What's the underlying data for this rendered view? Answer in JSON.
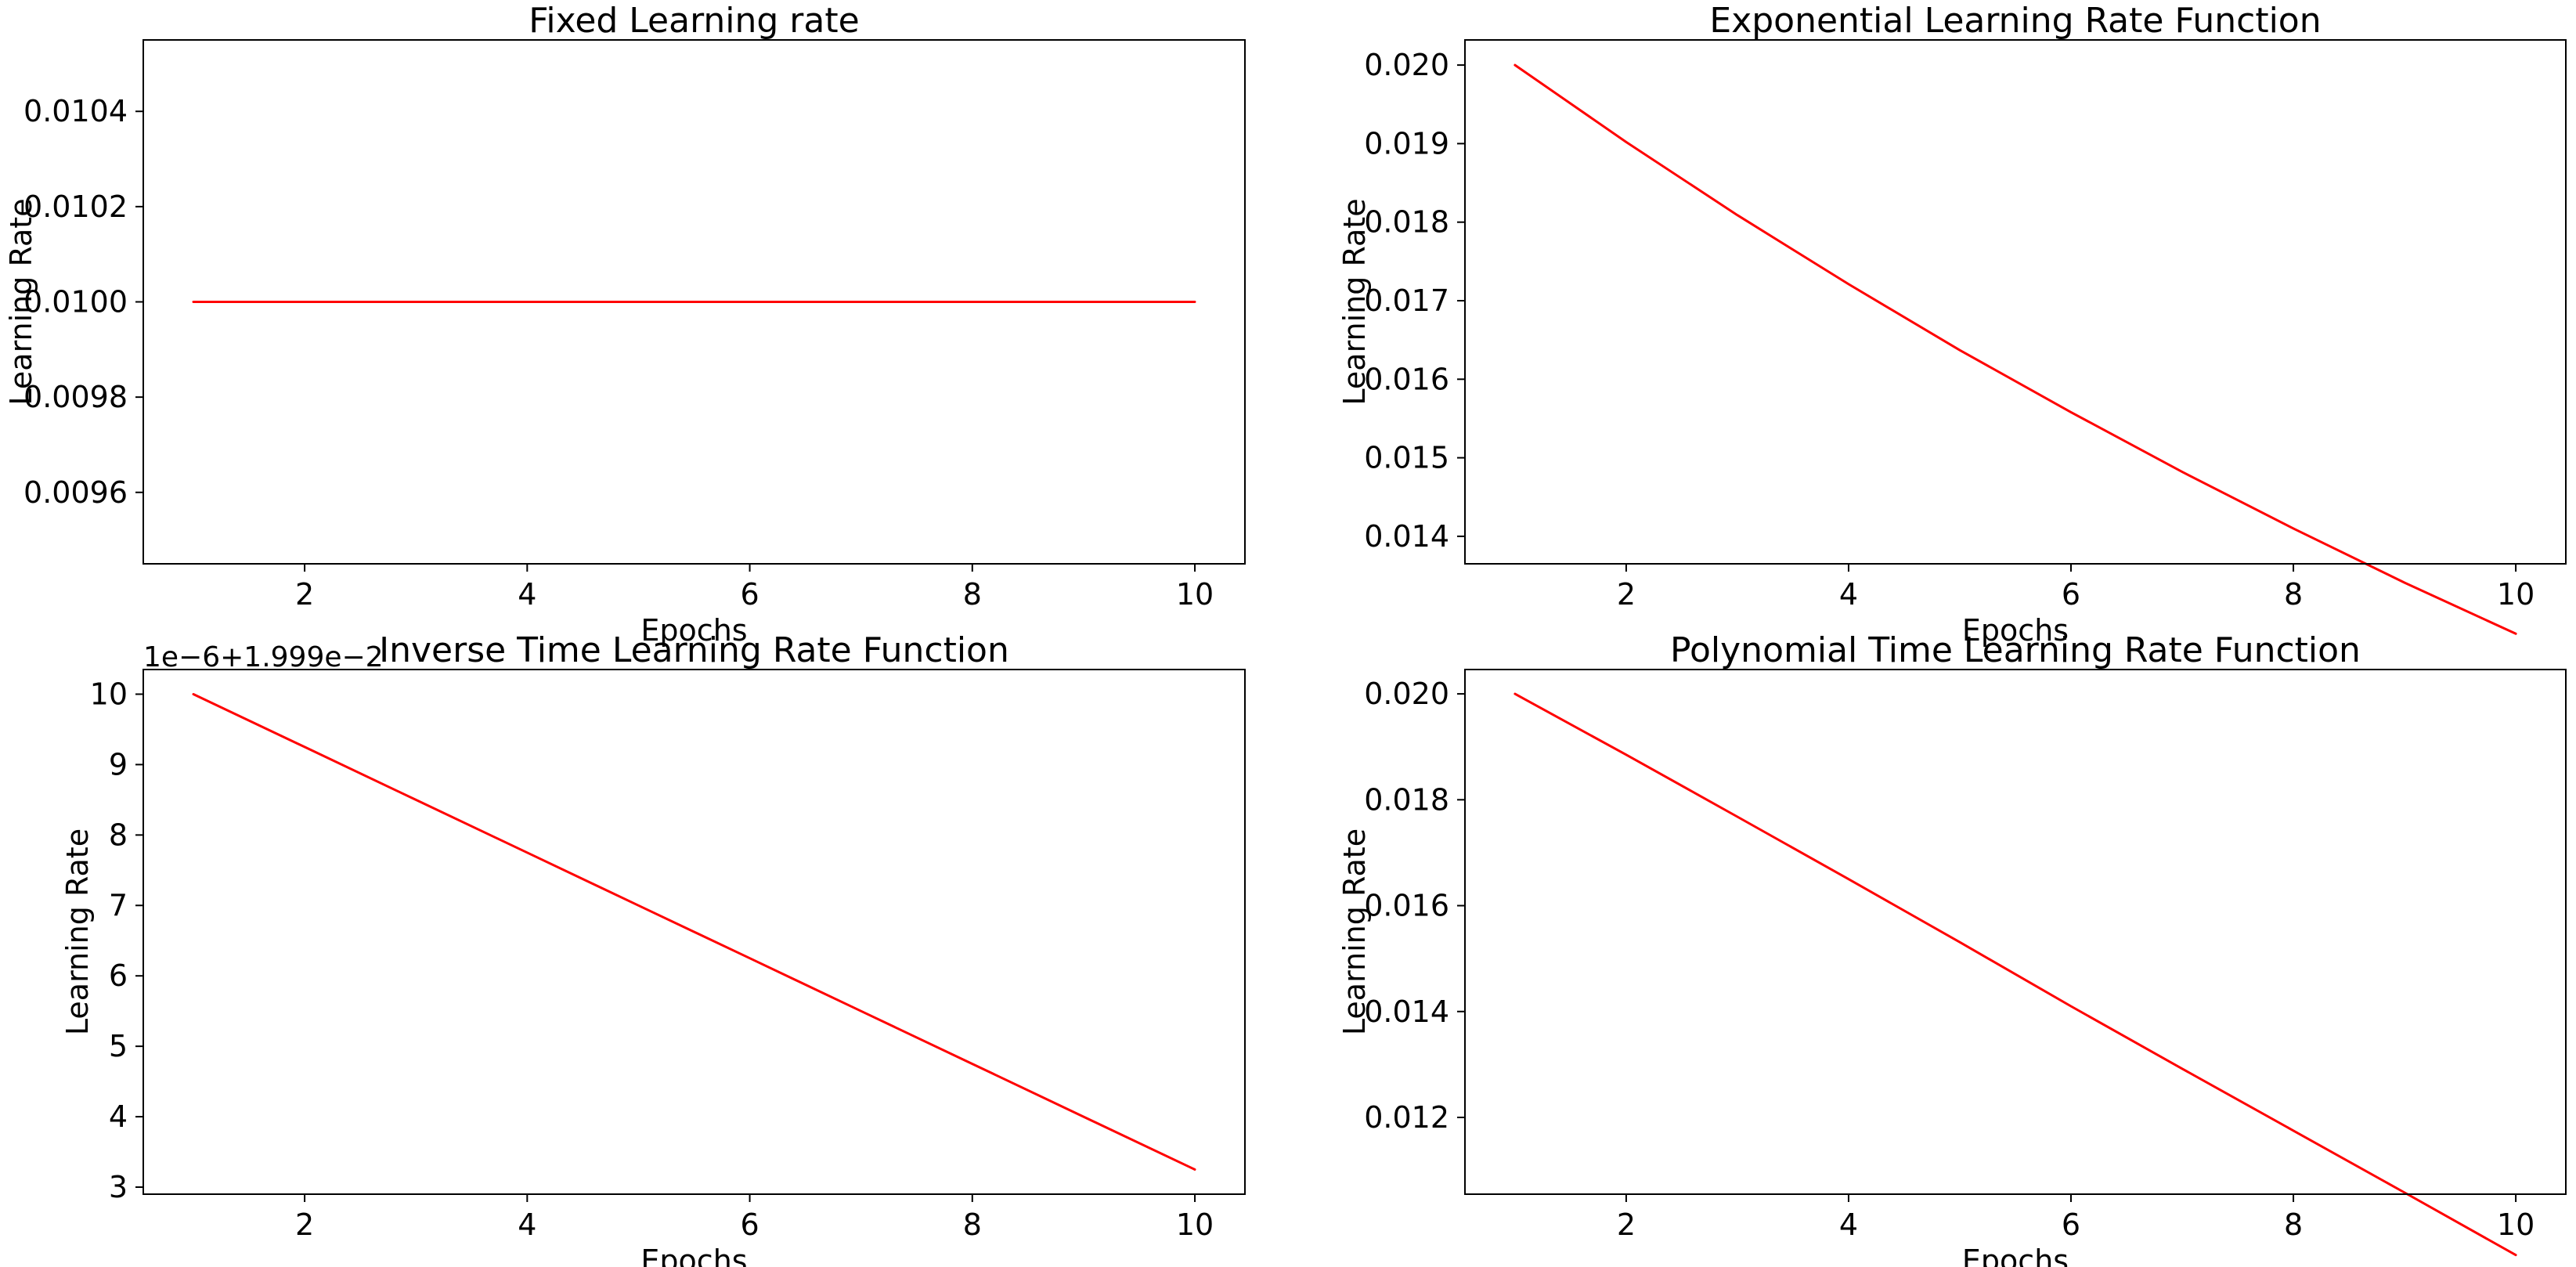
{
  "chart_data": [
    {
      "type": "line",
      "title": "Fixed Learning rate",
      "xlabel": "",
      "ylabel": "Learning Rate",
      "x": [
        1,
        2,
        3,
        4,
        5,
        6,
        7,
        8,
        9,
        10
      ],
      "series": [
        {
          "values": [
            0.01,
            0.01,
            0.01,
            0.01,
            0.01,
            0.01,
            0.01,
            0.01,
            0.01,
            0.01
          ]
        }
      ],
      "xticks": [
        2,
        4,
        6,
        8,
        10
      ],
      "xticklabels": [
        "2",
        "4",
        "6",
        "8",
        "10"
      ],
      "yticks": [
        0.0096,
        0.0098,
        0.01,
        0.0102,
        0.0104
      ],
      "yticklabels": [
        "0.0096",
        "0.0098",
        "0.0100",
        "0.0102",
        "0.0104"
      ],
      "xlim": [
        0.55,
        10.45
      ],
      "ylim": [
        0.00945,
        0.01055
      ],
      "offset_text": "",
      "color": "#ff0000",
      "grid": false
    },
    {
      "type": "line",
      "title": "Exponential Learning Rate Function",
      "xlabel": "Epochs",
      "ylabel": "Learning Rate",
      "x": [
        1,
        2,
        3,
        4,
        5,
        6,
        7,
        8,
        9,
        10
      ],
      "series": [
        {
          "values": [
            0.02,
            0.01902,
            0.01809,
            0.01721,
            0.01637,
            0.01558,
            0.01482,
            0.0141,
            0.01341,
            0.01276
          ]
        }
      ],
      "xticks": [
        2,
        4,
        6,
        8,
        10
      ],
      "xticklabels": [
        "2",
        "4",
        "6",
        "8",
        "10"
      ],
      "yticks": [
        0.014,
        0.015,
        0.016,
        0.017,
        0.018,
        0.019,
        0.02
      ],
      "yticklabels": [
        "0.014",
        "0.015",
        "0.016",
        "0.017",
        "0.018",
        "0.019",
        "0.020"
      ],
      "xlim": [
        0.55,
        10.45
      ],
      "ylim": [
        0.01365,
        0.02032
      ],
      "offset_text": "",
      "color": "#ff0000",
      "grid": false
    },
    {
      "type": "line",
      "title": "Inverse Time Learning Rate Function",
      "xlabel": "Epochs",
      "ylabel": "Learning Rate",
      "x": [
        1,
        2,
        3,
        4,
        5,
        6,
        7,
        8,
        9,
        10
      ],
      "series": [
        {
          "values": [
            10.0,
            9.25,
            8.5,
            7.75,
            7.0,
            6.25,
            5.5,
            4.75,
            4.0,
            3.25
          ]
        }
      ],
      "xticks": [
        2,
        4,
        6,
        8,
        10
      ],
      "xticklabels": [
        "2",
        "4",
        "6",
        "8",
        "10"
      ],
      "yticks": [
        3,
        4,
        5,
        6,
        7,
        8,
        9,
        10
      ],
      "yticklabels": [
        "3",
        "4",
        "5",
        "6",
        "7",
        "8",
        "9",
        "10"
      ],
      "xlim": [
        0.55,
        10.45
      ],
      "ylim": [
        2.9,
        10.35
      ],
      "offset_text": "1e−6+1.999e−2",
      "color": "#ff0000",
      "grid": false
    },
    {
      "type": "line",
      "title": "Polynomial Time Learning Rate Function",
      "xlabel": "Epochs",
      "ylabel": "Learning Rate",
      "x": [
        1,
        2,
        3,
        4,
        5,
        6,
        7,
        8,
        9,
        10
      ],
      "series": [
        {
          "values": [
            0.02,
            0.01885,
            0.01768,
            0.0165,
            0.01531,
            0.0141,
            0.01292,
            0.01175,
            0.01058,
            0.0094
          ]
        }
      ],
      "xticks": [
        2,
        4,
        6,
        8,
        10
      ],
      "xticklabels": [
        "2",
        "4",
        "6",
        "8",
        "10"
      ],
      "yticks": [
        0.012,
        0.014,
        0.016,
        0.018,
        0.02
      ],
      "yticklabels": [
        "0.012",
        "0.014",
        "0.016",
        "0.018",
        "0.020"
      ],
      "xlim": [
        0.55,
        10.45
      ],
      "ylim": [
        0.01055,
        0.02046
      ],
      "offset_text": "",
      "color": "#ff0000",
      "grid": false
    }
  ],
  "labels": {
    "shared_xlabel_top": "Epochs"
  }
}
